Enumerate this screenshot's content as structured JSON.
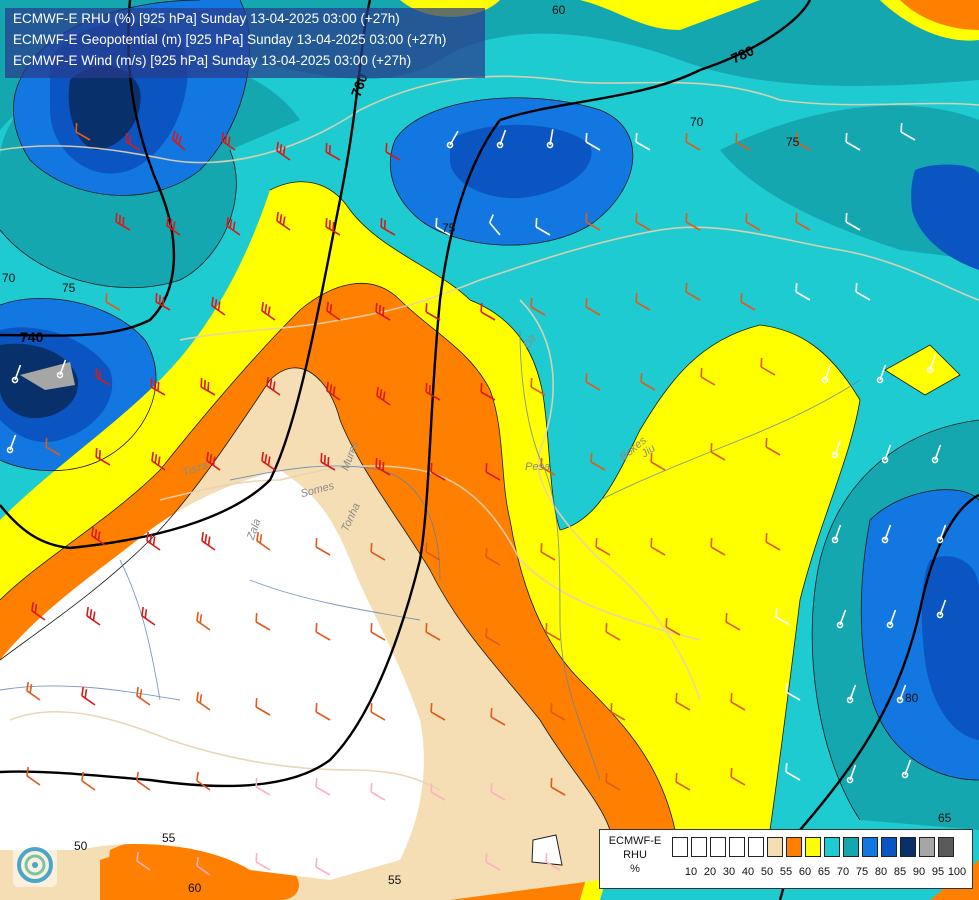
{
  "title_lines": [
    "ECMWF-E RHU (%) [925 hPa] Sunday 13-04-2025 03:00 (+27h)",
    "ECMWF-E Geopotential (m) [925 hPa] Sunday 13-04-2025 03:00 (+27h)",
    "ECMWF-E Wind (m/s) [925 hPa] Sunday 13-04-2025 03:00 (+27h)"
  ],
  "legend": {
    "title_line1": "ECMWF-E",
    "title_line2": "RHU",
    "title_line3": "%",
    "ticks": [
      "10",
      "20",
      "30",
      "40",
      "50",
      "55",
      "60",
      "65",
      "70",
      "75",
      "80",
      "85",
      "90",
      "95",
      "100"
    ],
    "colors": [
      "#ffffff",
      "#ffffff",
      "#ffffff",
      "#ffffff",
      "#ffffff",
      "#f5deb3",
      "#ff8000",
      "#ffff00",
      "#1ecbd1",
      "#14a7b0",
      "#1277e0",
      "#0a55c2",
      "#08306b",
      "#a6a6a6",
      "#5a5a5a"
    ]
  },
  "geopotential_labels": [
    "760",
    "780",
    "740"
  ],
  "rhu_labels": [
    "60",
    "70",
    "75",
    "75",
    "70",
    "75",
    "80",
    "65",
    "55",
    "55",
    "50",
    "60"
  ],
  "river_labels": [
    "Tisza",
    "Somes",
    "Mures",
    "Olt",
    "Jiu",
    "Zala",
    "Tonha",
    "Pesa",
    "Bokes"
  ]
}
